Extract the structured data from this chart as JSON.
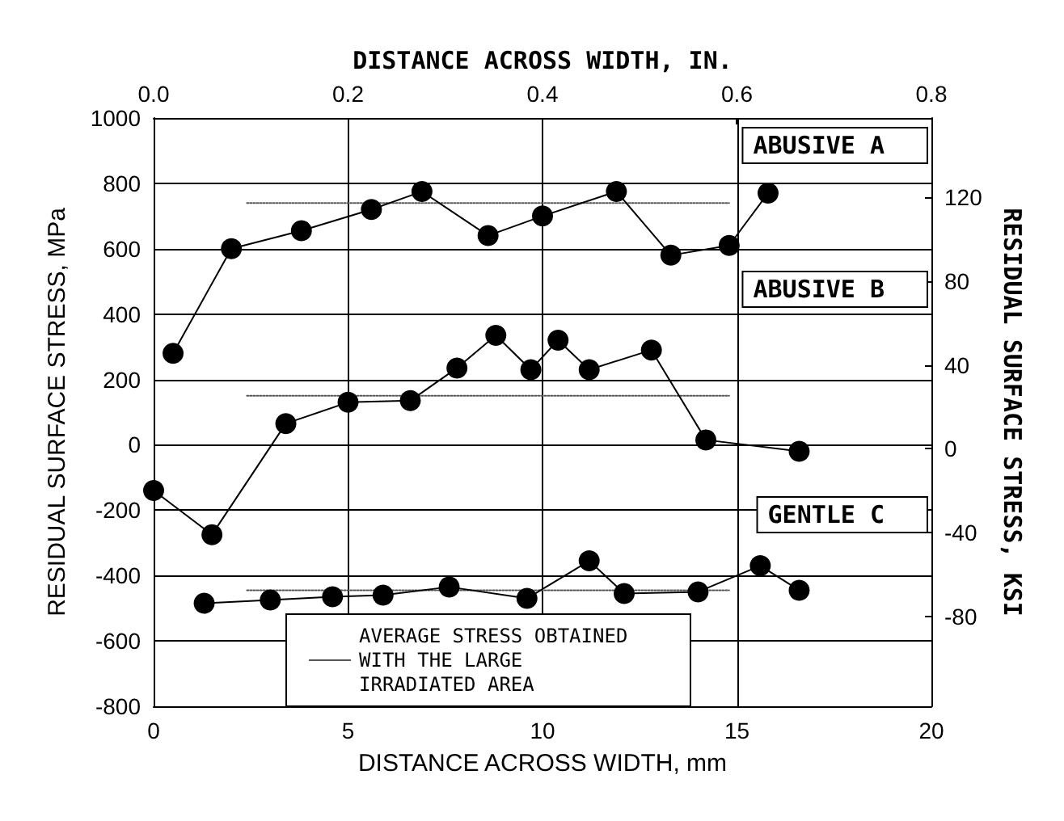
{
  "chart_data": {
    "type": "line",
    "xlabel": "DISTANCE ACROSS WIDTH, mm",
    "x2label": "DISTANCE ACROSS WIDTH, IN.",
    "ylabel": "RESIDUAL SURFACE STRESS, MPa",
    "y2label": "RESIDUAL SURFACE STRESS, KSI",
    "xlim": [
      0,
      20
    ],
    "xticks": [
      0,
      5,
      10,
      15,
      20
    ],
    "x2lim": [
      0,
      0.8
    ],
    "x2ticks": [
      {
        "value": 0,
        "label": "0.0"
      },
      0.2,
      0.4,
      0.6,
      0.8
    ],
    "ylim": [
      -800,
      1000
    ],
    "yticks": [
      -800,
      -600,
      -400,
      -200,
      0,
      200,
      400,
      600,
      800,
      1000
    ],
    "y2lim": [
      -123,
      158
    ],
    "y2ticks": [
      -80,
      -40,
      0,
      40,
      80,
      120
    ],
    "grid": true,
    "legend": "bottom",
    "marker": "circle",
    "line_style": "solid",
    "series": [
      {
        "name": "ABUSIVE A",
        "color": "#000000",
        "x": [
          0.5,
          2,
          3.8,
          5.6,
          6.9,
          8.6,
          10,
          11.9,
          13.3,
          14.8,
          15.8
        ],
        "values": [
          280,
          600,
          655,
          720,
          775,
          640,
          700,
          775,
          580,
          610,
          770
        ]
      },
      {
        "name": "ABUSIVE B",
        "color": "#000000",
        "x": [
          0,
          1.5,
          3.4,
          5,
          6.6,
          7.8,
          8.8,
          9.7,
          10.4,
          11.2,
          12.8,
          14.2,
          16.6
        ],
        "values": [
          -140,
          -275,
          65,
          130,
          135,
          235,
          335,
          230,
          320,
          230,
          290,
          15,
          -20
        ]
      },
      {
        "name": "GENTLE C",
        "color": "#000000",
        "x": [
          1.3,
          3,
          4.6,
          5.9,
          7.6,
          9.6,
          11.2,
          12.1,
          14,
          15.6,
          16.6
        ],
        "values": [
          -485,
          -475,
          -465,
          -460,
          -435,
          -470,
          -355,
          -455,
          -450,
          -370,
          -445
        ]
      },
      {
        "name": "AVERAGE STRESS OBTAINED WITH THE LARGE IRRADIATED AREA",
        "color": "#555555",
        "line_style": "dotted",
        "marker": "none",
        "x": [
          2.4,
          14.8
        ],
        "values": [
          740,
          740
        ]
      },
      {
        "color": "#555555",
        "line_style": "dotted",
        "marker": "none",
        "x": [
          2.4,
          14.8
        ],
        "values": [
          150,
          150
        ]
      },
      {
        "color": "#555555",
        "line_style": "dotted",
        "marker": "none",
        "x": [
          2.4,
          14.8
        ],
        "values": [
          -445,
          -445
        ]
      }
    ]
  }
}
